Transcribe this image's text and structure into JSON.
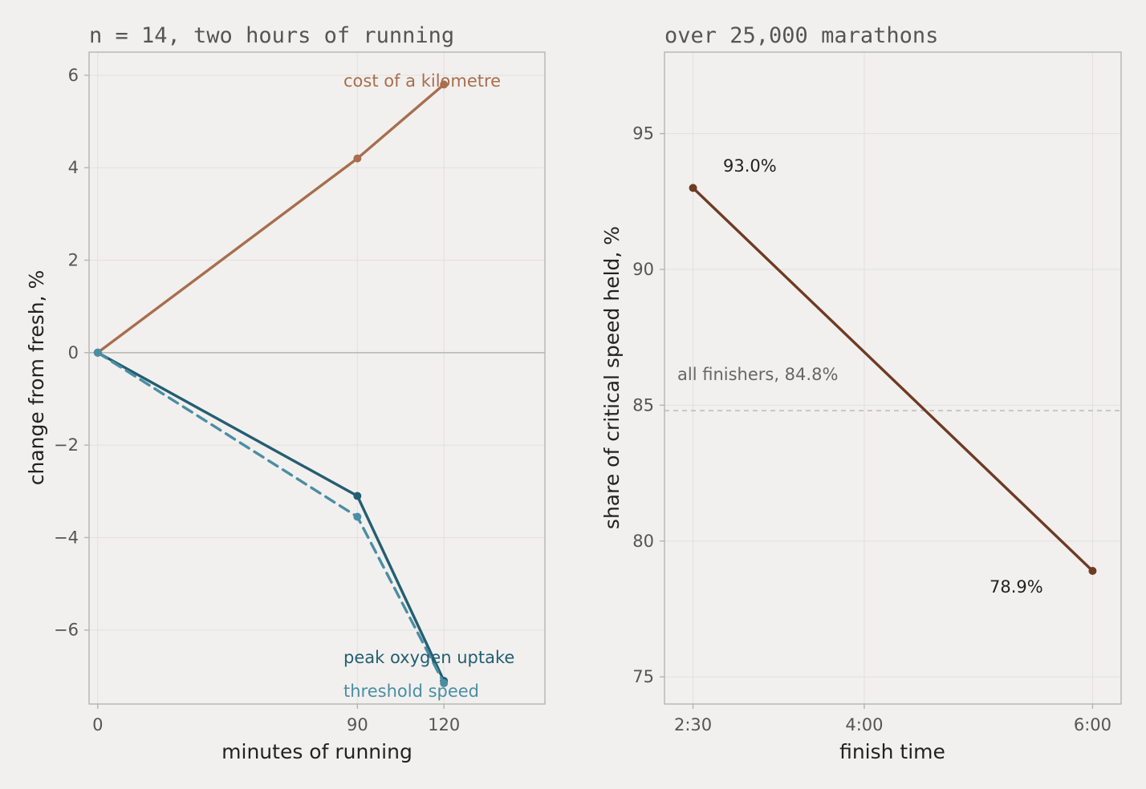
{
  "chart_data": [
    {
      "type": "line",
      "title": "n = 14, two hours of running",
      "xlabel": "minutes of running",
      "ylabel": "change from fresh, %",
      "xlim": [
        -3,
        155
      ],
      "ylim": [
        -7.6,
        6.5
      ],
      "xticks": [
        0,
        90,
        120
      ],
      "xtick_labels": [
        "0",
        "90",
        "120"
      ],
      "yticks": [
        -6,
        -4,
        -2,
        0,
        2,
        4,
        6
      ],
      "ytick_labels": [
        "−6",
        "−4",
        "−2",
        "0",
        "2",
        "4",
        "6"
      ],
      "grid": true,
      "zero_line": true,
      "series": [
        {
          "name": "cost of a kilometre",
          "x": [
            0,
            90,
            120
          ],
          "y": [
            0,
            4.2,
            5.8
          ],
          "color": "#a86e4e",
          "dash": "solid"
        },
        {
          "name": "peak oxygen uptake",
          "x": [
            0,
            90,
            120
          ],
          "y": [
            0,
            -3.1,
            -7.1
          ],
          "color": "#245e72",
          "dash": "solid"
        },
        {
          "name": "threshold speed",
          "x": [
            0,
            90,
            120
          ],
          "y": [
            0,
            -3.55,
            -7.15
          ],
          "color": "#4a8ea4",
          "dash": "dashed"
        }
      ]
    },
    {
      "type": "line",
      "title": "over 25,000 marathons",
      "xlabel": "finish time",
      "ylabel": "share of critical speed held, %",
      "xlim": [
        135,
        375
      ],
      "ylim": [
        74,
        98
      ],
      "xticks": [
        150,
        240,
        360
      ],
      "xtick_labels": [
        "2:30",
        "4:00",
        "6:00"
      ],
      "yticks": [
        75,
        80,
        85,
        90,
        95
      ],
      "ytick_labels": [
        "75",
        "80",
        "85",
        "90",
        "95"
      ],
      "grid": true,
      "series": [
        {
          "name": "",
          "x": [
            150,
            360
          ],
          "y": [
            93.0,
            78.9
          ],
          "color": "#6e3b24",
          "dash": "solid"
        }
      ],
      "point_labels": [
        "93.0%",
        "78.9%"
      ],
      "reference_line": {
        "y": 84.8,
        "label": "all finishers, 84.8%",
        "color": "#bdbab7"
      }
    }
  ]
}
